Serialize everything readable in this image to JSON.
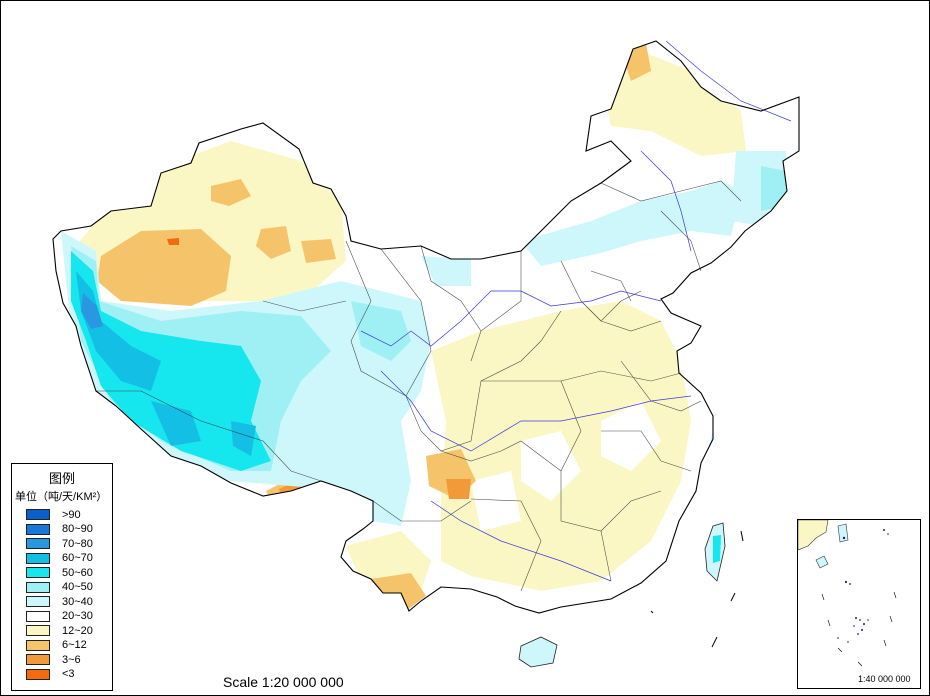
{
  "legend": {
    "title": "图例",
    "unit": "单位（吨/天/KM²）",
    "items": [
      {
        "label": ">90",
        "color": "#0a5fc8"
      },
      {
        "label": "80~90",
        "color": "#1a78d8"
      },
      {
        "label": "70~80",
        "color": "#2a97e2"
      },
      {
        "label": "60~70",
        "color": "#14bfe6"
      },
      {
        "label": "50~60",
        "color": "#16e6ee"
      },
      {
        "label": "40~50",
        "color": "#9ff0f4"
      },
      {
        "label": "30~40",
        "color": "#cdf7fb"
      },
      {
        "label": "20~30",
        "color": "#ffffff"
      },
      {
        "label": "12~20",
        "color": "#fbf7c4"
      },
      {
        "label": "6~12",
        "color": "#f5c46a"
      },
      {
        "label": "3~6",
        "color": "#f29a3a"
      },
      {
        "label": "<3",
        "color": "#f46a0e"
      }
    ]
  },
  "scale_label": "Scale 1:20 000 000",
  "inset": {
    "scale_label": "1:40 000 000"
  }
}
